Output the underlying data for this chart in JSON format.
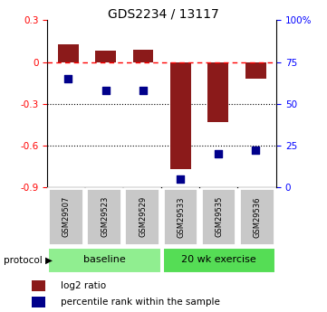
{
  "title": "GDS2234 / 13117",
  "samples": [
    "GSM29507",
    "GSM29523",
    "GSM29529",
    "GSM29533",
    "GSM29535",
    "GSM29536"
  ],
  "log2_ratio": [
    0.13,
    0.08,
    0.09,
    -0.77,
    -0.43,
    -0.12
  ],
  "percentile_rank": [
    65,
    58,
    58,
    5,
    20,
    22
  ],
  "bar_color": "#8B1A1A",
  "dot_color": "#00008B",
  "ylim_left": [
    -0.9,
    0.3
  ],
  "ylim_right": [
    0,
    100
  ],
  "yticks_left": [
    -0.9,
    -0.6,
    -0.3,
    0.0,
    0.3
  ],
  "yticks_right": [
    0,
    25,
    50,
    75,
    100
  ],
  "ytick_labels_right": [
    "0",
    "25",
    "50",
    "75",
    "100%"
  ],
  "hline_value": 0.0,
  "dotted_lines": [
    -0.3,
    -0.6
  ],
  "bar_width": 0.55,
  "dot_size": 30,
  "group1_color": "#90EE90",
  "group2_color": "#55DD55",
  "gray_box_color": "#C8C8C8",
  "left_label_color": "red",
  "right_label_color": "blue"
}
